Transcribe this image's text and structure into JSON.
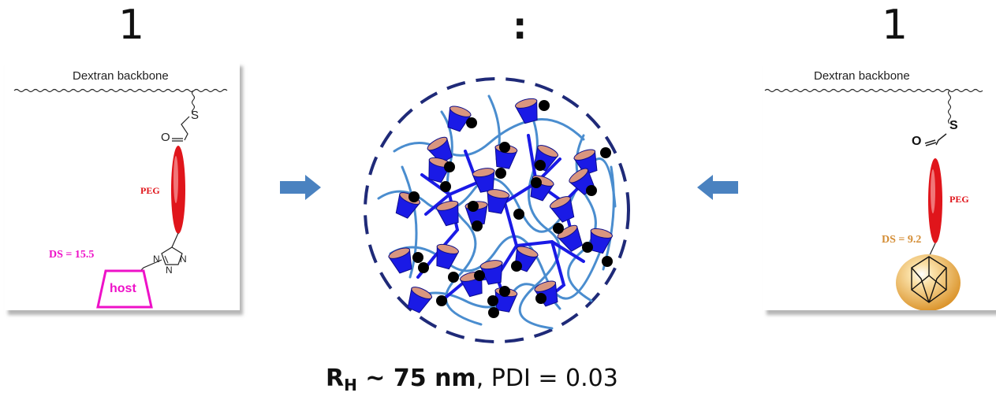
{
  "header": {
    "left_number": "1",
    "ratio_separator": ":",
    "right_number": "1"
  },
  "left_panel": {
    "backbone_label": "Dextran backbone",
    "sulfur_label": "S",
    "oxygen_label": "O",
    "peg_label": "PEG",
    "ds_label": "DS = 15.5",
    "triazole_n1": "N",
    "triazole_n2": "N",
    "triazole_n3": "N",
    "host_label": "host",
    "colors": {
      "peg": "#e0151b",
      "host": "#ee11c8"
    }
  },
  "right_panel": {
    "backbone_label": "Dextran backbone",
    "sulfur_label": "S",
    "oxygen_label": "O",
    "peg_label": "PEG",
    "ds_label": "DS = 9.2",
    "colors": {
      "peg": "#e0151b",
      "guest_sphere": "#e0a43a",
      "ds": "#d48d35"
    }
  },
  "center": {
    "result_r": "R",
    "result_r_sub": "H",
    "result_size": " ~ 75 nm",
    "result_rest": ", PDI = 0.03",
    "colors": {
      "host_cup": "#1a1ae6",
      "cup_rim": "#d9967f",
      "polymer": "#4a8dcf",
      "guest": "#000000",
      "boundary": "#1f2a78",
      "arrow": "#4a82c0"
    }
  }
}
